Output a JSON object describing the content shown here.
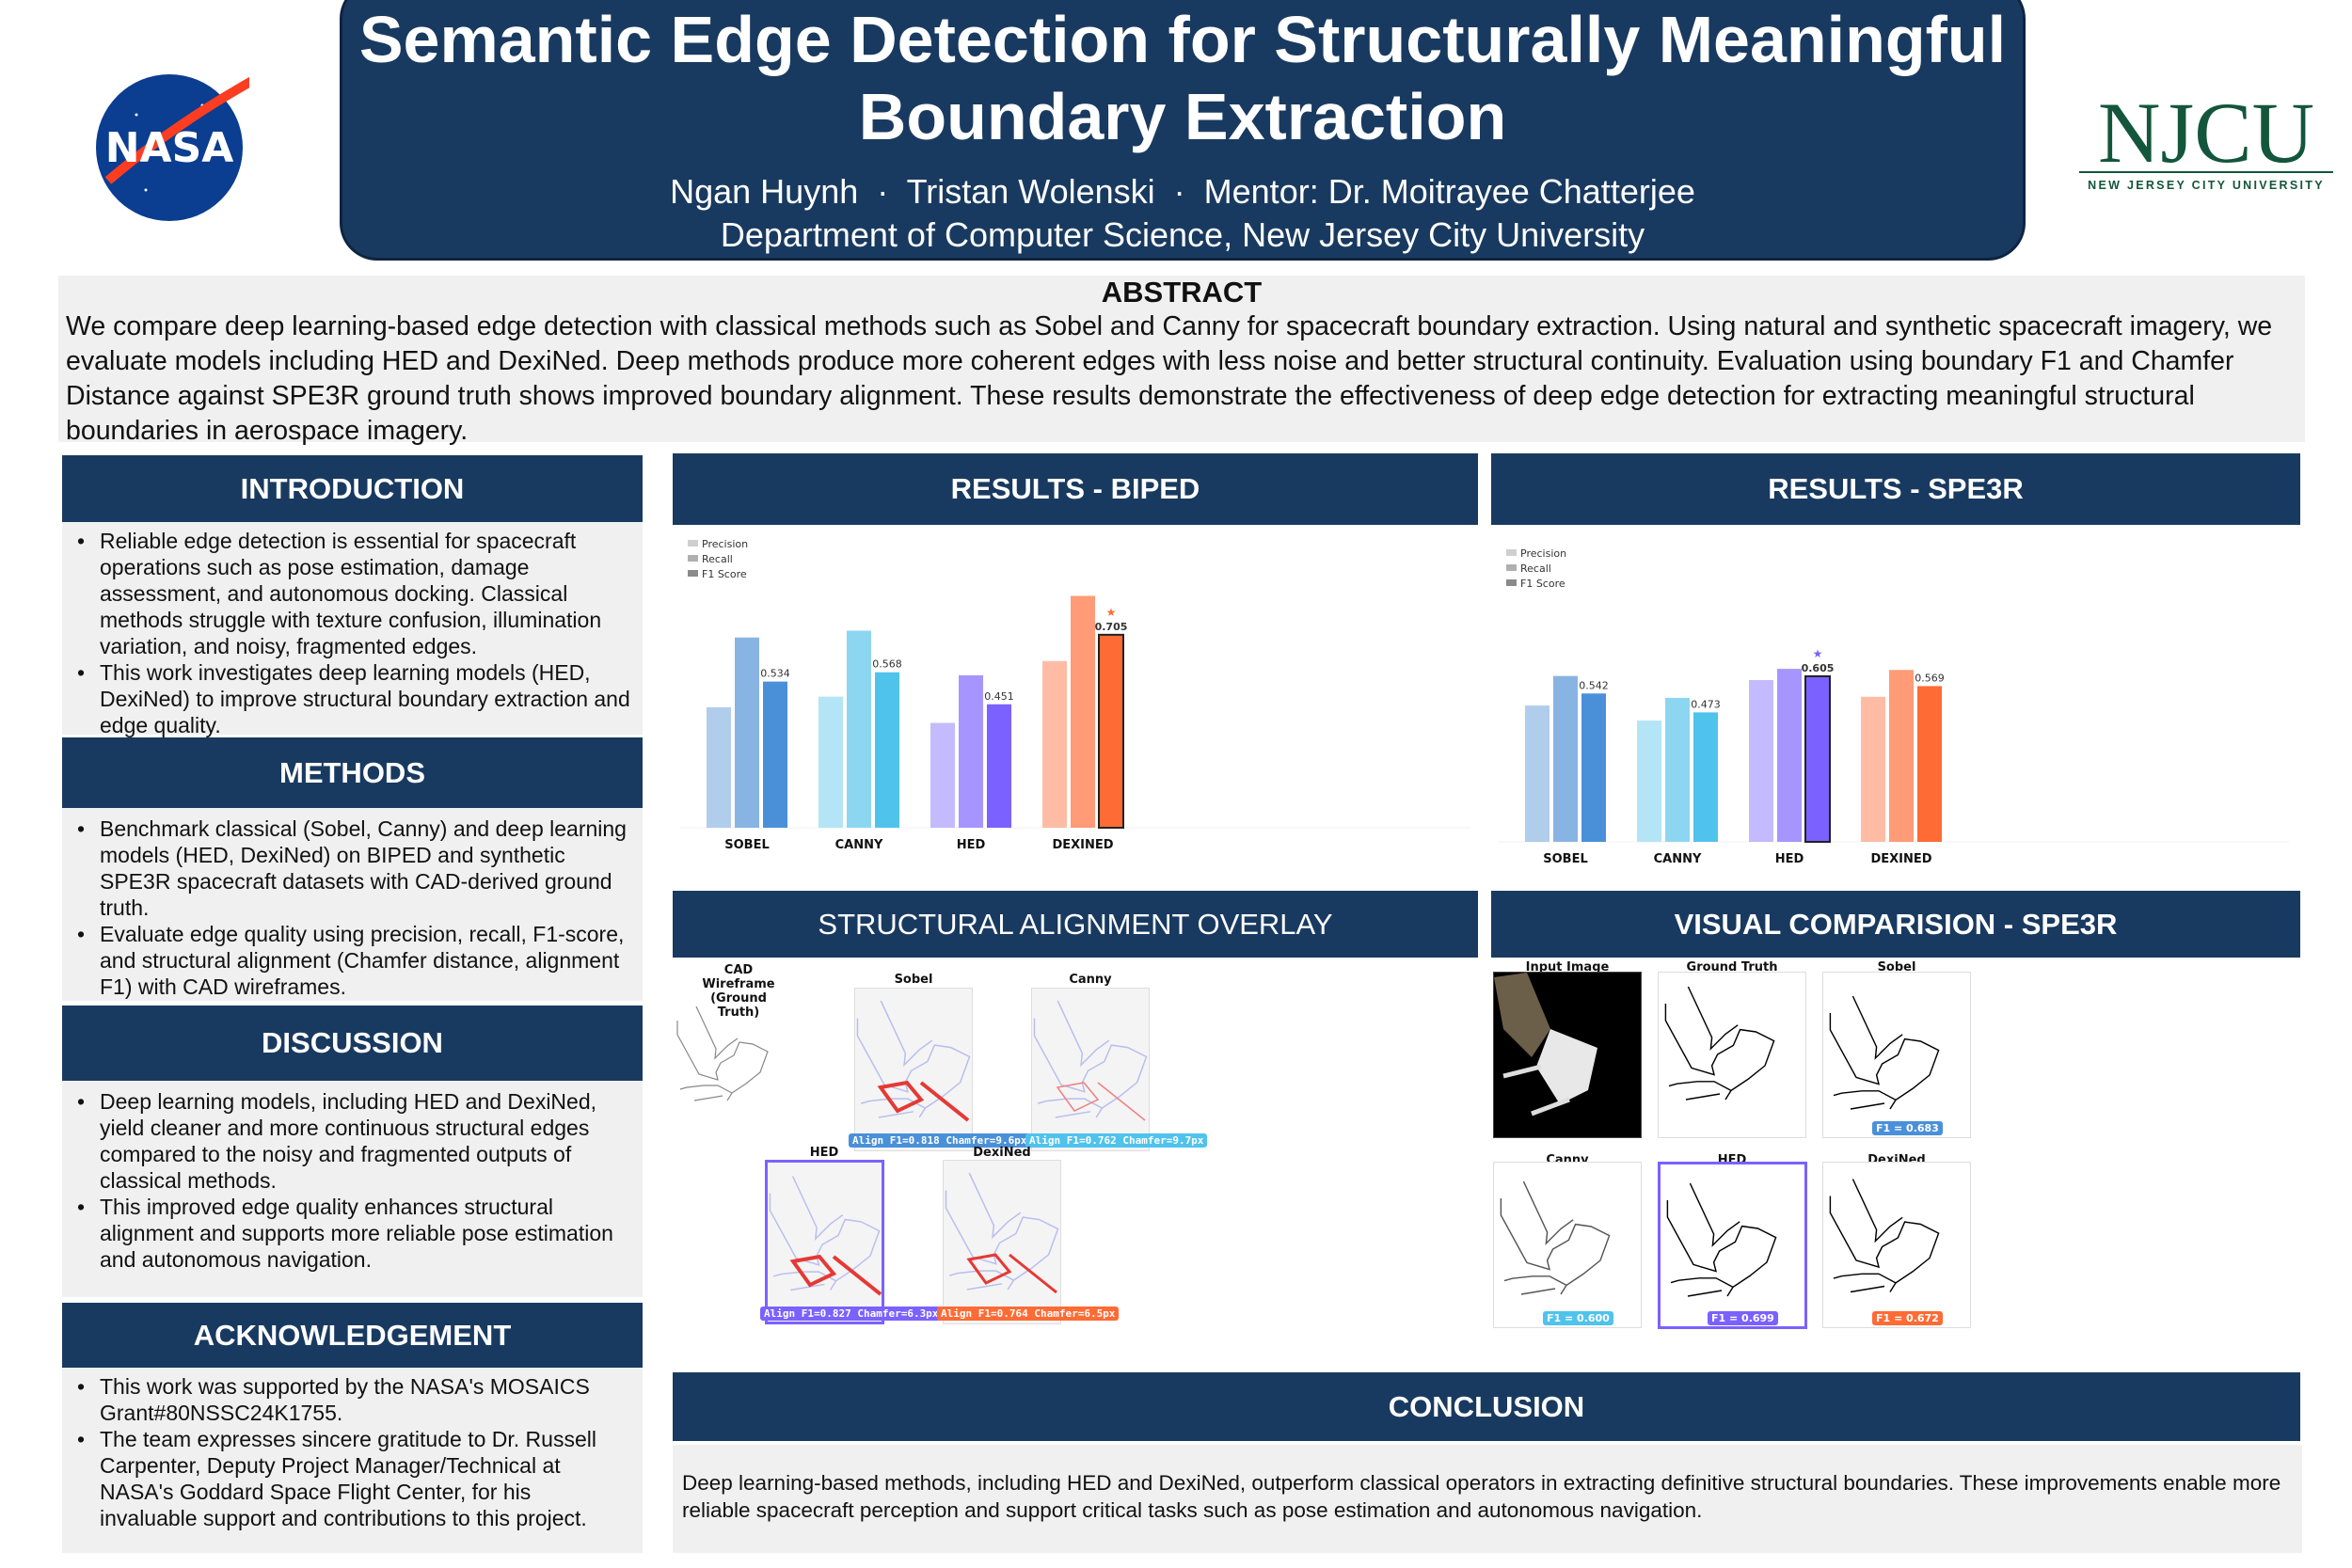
{
  "header": {
    "title_line1": "Semantic Edge Detection for Structurally Meaningful",
    "title_line2": "Boundary Extraction",
    "authors": "Ngan Huynh  ·  Tristan Wolenski  ·  Mentor: Dr. Moitrayee Chatterjee",
    "department": "Department of Computer Science, New Jersey City University",
    "left_logo": "NASA",
    "right_logo": "NJCU",
    "right_logo_sub": "NEW JERSEY CITY UNIVERSITY"
  },
  "abstract": {
    "heading": "ABSTRACT",
    "text": "We compare deep learning-based edge detection with classical methods such as Sobel and Canny for spacecraft boundary extraction. Using natural and synthetic spacecraft imagery, we evaluate models including HED and DexiNed. Deep methods produce more coherent edges with less noise and better structural continuity. Evaluation using boundary F1 and Chamfer Distance against SPE3R ground truth shows improved boundary alignment. These results demonstrate the effectiveness of deep edge detection for extracting meaningful structural boundaries in aerospace imagery."
  },
  "introduction": {
    "heading": "INTRODUCTION",
    "bullets": [
      "Reliable edge detection is essential for spacecraft operations such as pose estimation, damage assessment, and autonomous docking. Classical methods struggle with texture confusion, illumination variation, and noisy, fragmented edges.",
      "This work investigates deep learning models (HED, DexiNed) to improve structural boundary extraction and edge quality."
    ]
  },
  "methods": {
    "heading": "METHODS",
    "bullets": [
      "Benchmark classical (Sobel, Canny) and deep learning models (HED, DexiNed) on BIPED and synthetic SPE3R spacecraft datasets with CAD-derived ground truth.",
      "Evaluate edge quality using precision, recall, F1-score, and structural alignment (Chamfer distance, alignment F1) with CAD wireframes."
    ]
  },
  "discussion": {
    "heading": "DISCUSSION",
    "bullets": [
      "Deep learning models, including HED and DexiNed, yield cleaner and more continuous structural edges compared to the noisy and fragmented outputs of classical methods.",
      "This improved edge quality enhances structural alignment and supports more reliable pose estimation and autonomous navigation."
    ]
  },
  "acknowledgement": {
    "heading": "ACKNOWLEDGEMENT",
    "bullets": [
      "This work was supported by the NASA's MOSAICS Grant#80NSSC24K1755.",
      "The team expresses sincere gratitude to Dr. Russell Carpenter, Deputy Project Manager/Technical at NASA's Goddard Space Flight Center, for his invaluable support and contributions to this project."
    ]
  },
  "results_biped": {
    "heading": "RESULTS - BIPED"
  },
  "results_spe3r": {
    "heading": "RESULTS - SPE3R"
  },
  "overlay": {
    "heading": "STRUCTURAL ALIGNMENT OVERLAY",
    "cad_title": "CAD Wireframe\n(Ground Truth)",
    "panels": [
      {
        "title": "Sobel",
        "label": "Align F1=0.818  Chamfer=9.6px",
        "color": "#4a90d9"
      },
      {
        "title": "Canny",
        "label": "Align F1=0.762  Chamfer=9.7px",
        "color": "#4fc3ec"
      },
      {
        "title": "HED",
        "label": "Align F1=0.827  Chamfer=6.3px",
        "color": "#7b61ff"
      },
      {
        "title": "DexiNed",
        "label": "Align F1=0.764  Chamfer=6.5px",
        "color": "#ff6b35"
      }
    ]
  },
  "visual": {
    "heading": "VISUAL COMPARISION - SPE3R",
    "panels": [
      {
        "title": "Input Image"
      },
      {
        "title": "Ground Truth"
      },
      {
        "title": "Sobel",
        "label": "F1 = 0.683",
        "color": "#4a90d9"
      },
      {
        "title": "Canny",
        "label": "F1 = 0.600",
        "color": "#4fc3ec"
      },
      {
        "title": "HED",
        "label": "F1 = 0.699",
        "color": "#7b61ff"
      },
      {
        "title": "DexiNed",
        "label": "F1 = 0.672",
        "color": "#ff6b35"
      }
    ]
  },
  "conclusion": {
    "heading": "CONCLUSION",
    "text": "Deep learning-based methods, including HED and DexiNed, outperform classical operators in extracting definitive structural boundaries. These improvements enable more reliable spacecraft perception and support critical tasks such as pose estimation and autonomous navigation."
  },
  "chart_data": [
    {
      "type": "bar",
      "title": "",
      "categories": [
        "SOBEL",
        "CANNY",
        "HED",
        "DEXINED"
      ],
      "legend": [
        "Precision",
        "Recall",
        "F1 Score"
      ],
      "legend_position": "top-left",
      "series": [
        {
          "name": "Precision",
          "values": [
            0.44,
            0.479,
            0.383,
            0.609
          ]
        },
        {
          "name": "Recall",
          "values": [
            0.695,
            0.72,
            0.557,
            0.847
          ]
        },
        {
          "name": "F1 Score",
          "values": [
            0.534,
            0.568,
            0.451,
            0.705
          ]
        }
      ],
      "f1_labels": [
        "0.534",
        "0.568",
        "0.451",
        "0.705"
      ],
      "best_index": 3,
      "colors": [
        [
          "#b0cdec",
          "#88b4e3",
          "#4a90d9"
        ],
        [
          "#b3e5f6",
          "#8dd6f1",
          "#4fc3ec"
        ],
        [
          "#c4baff",
          "#a795ff",
          "#7b61ff"
        ],
        [
          "#ffbca5",
          "#ff9b76",
          "#ff6b35"
        ]
      ],
      "ylim": [
        0,
        0.9
      ],
      "grid": false
    },
    {
      "type": "bar",
      "title": "",
      "categories": [
        "SOBEL",
        "CANNY",
        "HED",
        "DEXINED"
      ],
      "legend": [
        "Precision",
        "Recall",
        "F1 Score"
      ],
      "legend_position": "top-left",
      "series": [
        {
          "name": "Precision",
          "values": [
            0.498,
            0.443,
            0.591,
            0.53
          ]
        },
        {
          "name": "Recall",
          "values": [
            0.606,
            0.526,
            0.632,
            0.628
          ]
        },
        {
          "name": "F1 Score",
          "values": [
            0.542,
            0.473,
            0.605,
            0.569
          ]
        }
      ],
      "f1_labels": [
        "0.542",
        "0.473",
        "0.605",
        "0.569"
      ],
      "best_index": 2,
      "colors": [
        [
          "#b0cdec",
          "#88b4e3",
          "#4a90d9"
        ],
        [
          "#b3e5f6",
          "#8dd6f1",
          "#4fc3ec"
        ],
        [
          "#c4baff",
          "#a795ff",
          "#7b61ff"
        ],
        [
          "#ffbca5",
          "#ff9b76",
          "#ff6b35"
        ]
      ],
      "ylim": [
        0,
        0.9
      ],
      "grid": false
    }
  ]
}
